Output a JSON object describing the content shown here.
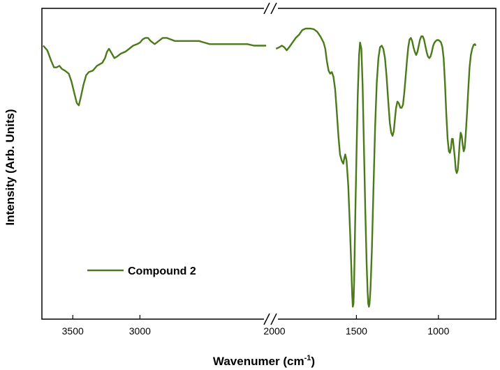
{
  "chart_data": {
    "type": "line",
    "xlabel": "Wavenumer (cm",
    "xlabel_superscript": "-1",
    "xlabel_suffix": ")",
    "ylabel": "Intensity (Arb. Units)",
    "x_axis_reversed": true,
    "x_axis_break": [
      2050,
      2000
    ],
    "segments": [
      {
        "xlim": [
          3730,
          2050
        ],
        "ticks": [
          3500,
          3000
        ]
      },
      {
        "xlim": [
          2000,
          650
        ],
        "ticks": [
          2000,
          1500,
          1000
        ]
      }
    ],
    "tick_labels": [
      "3500",
      "3000",
      "2000",
      "1500",
      "1000"
    ],
    "ylim": [
      0,
      100
    ],
    "grid": false,
    "legend_position": "bottom-left",
    "series": [
      {
        "name": "Compound 2",
        "color": "#4a7a1a",
        "points": [
          [
            3720,
            88
          ],
          [
            3690,
            86.5
          ],
          [
            3660,
            83
          ],
          [
            3640,
            81
          ],
          [
            3620,
            81
          ],
          [
            3600,
            81.5
          ],
          [
            3580,
            80.5
          ],
          [
            3560,
            80
          ],
          [
            3530,
            79
          ],
          [
            3510,
            76.5
          ],
          [
            3490,
            73
          ],
          [
            3470,
            69.5
          ],
          [
            3455,
            68.8
          ],
          [
            3440,
            71.5
          ],
          [
            3420,
            75.5
          ],
          [
            3400,
            78.5
          ],
          [
            3380,
            79.5
          ],
          [
            3350,
            80
          ],
          [
            3320,
            81.5
          ],
          [
            3300,
            82
          ],
          [
            3280,
            82.5
          ],
          [
            3260,
            84
          ],
          [
            3245,
            86
          ],
          [
            3230,
            87
          ],
          [
            3210,
            85.5
          ],
          [
            3190,
            84
          ],
          [
            3170,
            84.5
          ],
          [
            3140,
            85.5
          ],
          [
            3110,
            86
          ],
          [
            3080,
            87
          ],
          [
            3050,
            88
          ],
          [
            3020,
            88.5
          ],
          [
            3000,
            89
          ],
          [
            2980,
            90
          ],
          [
            2960,
            90.5
          ],
          [
            2940,
            90.5
          ],
          [
            2920,
            89.5
          ],
          [
            2890,
            88.5
          ],
          [
            2860,
            89.5
          ],
          [
            2830,
            90.5
          ],
          [
            2800,
            90.5
          ],
          [
            2770,
            90
          ],
          [
            2740,
            89.5
          ],
          [
            2710,
            89.5
          ],
          [
            2680,
            89.5
          ],
          [
            2650,
            89.5
          ],
          [
            2620,
            89.5
          ],
          [
            2590,
            89.5
          ],
          [
            2560,
            89.5
          ],
          [
            2520,
            89
          ],
          [
            2480,
            88.5
          ],
          [
            2440,
            88.5
          ],
          [
            2400,
            88.5
          ],
          [
            2350,
            88.5
          ],
          [
            2300,
            88.5
          ],
          [
            2250,
            88.5
          ],
          [
            2200,
            88.5
          ],
          [
            2150,
            88
          ],
          [
            2100,
            88
          ],
          [
            2060,
            88
          ]
        ],
        "points_after_break": [
          [
            1990,
            87
          ],
          [
            1970,
            87.5
          ],
          [
            1955,
            88
          ],
          [
            1940,
            87.5
          ],
          [
            1925,
            86.5
          ],
          [
            1910,
            87.5
          ],
          [
            1890,
            89
          ],
          [
            1870,
            90.5
          ],
          [
            1850,
            91.5
          ],
          [
            1830,
            93
          ],
          [
            1810,
            93.5
          ],
          [
            1780,
            93.5
          ],
          [
            1760,
            93.3
          ],
          [
            1740,
            92.5
          ],
          [
            1720,
            91
          ],
          [
            1700,
            89
          ],
          [
            1690,
            87
          ],
          [
            1680,
            83
          ],
          [
            1670,
            80
          ],
          [
            1660,
            79
          ],
          [
            1650,
            79.5
          ],
          [
            1640,
            78
          ],
          [
            1630,
            74
          ],
          [
            1620,
            67
          ],
          [
            1610,
            59
          ],
          [
            1600,
            53
          ],
          [
            1590,
            51
          ],
          [
            1580,
            50
          ],
          [
            1575,
            51.5
          ],
          [
            1568,
            53
          ],
          [
            1560,
            51
          ],
          [
            1550,
            43
          ],
          [
            1540,
            30
          ],
          [
            1532,
            18
          ],
          [
            1526,
            8
          ],
          [
            1522,
            4
          ],
          [
            1518,
            5
          ],
          [
            1514,
            12
          ],
          [
            1508,
            30
          ],
          [
            1500,
            52
          ],
          [
            1492,
            72
          ],
          [
            1484,
            85
          ],
          [
            1478,
            89
          ],
          [
            1470,
            87
          ],
          [
            1462,
            75
          ],
          [
            1454,
            55
          ],
          [
            1446,
            35
          ],
          [
            1438,
            18
          ],
          [
            1432,
            9
          ],
          [
            1428,
            5
          ],
          [
            1424,
            4
          ],
          [
            1420,
            5
          ],
          [
            1414,
            10
          ],
          [
            1406,
            22
          ],
          [
            1396,
            42
          ],
          [
            1386,
            62
          ],
          [
            1376,
            76
          ],
          [
            1366,
            84
          ],
          [
            1356,
            87.5
          ],
          [
            1346,
            88
          ],
          [
            1336,
            87
          ],
          [
            1326,
            84
          ],
          [
            1316,
            78
          ],
          [
            1306,
            70
          ],
          [
            1296,
            63
          ],
          [
            1288,
            60
          ],
          [
            1280,
            59
          ],
          [
            1272,
            60.5
          ],
          [
            1264,
            65
          ],
          [
            1258,
            68
          ],
          [
            1250,
            70
          ],
          [
            1242,
            69.5
          ],
          [
            1232,
            68
          ],
          [
            1224,
            68
          ],
          [
            1216,
            69
          ],
          [
            1208,
            73
          ],
          [
            1200,
            78
          ],
          [
            1192,
            83
          ],
          [
            1184,
            87.5
          ],
          [
            1176,
            90
          ],
          [
            1168,
            90.5
          ],
          [
            1160,
            89.5
          ],
          [
            1152,
            87.5
          ],
          [
            1144,
            86
          ],
          [
            1136,
            85
          ],
          [
            1128,
            86
          ],
          [
            1120,
            88
          ],
          [
            1112,
            90
          ],
          [
            1104,
            91
          ],
          [
            1096,
            91
          ],
          [
            1088,
            90
          ],
          [
            1080,
            88
          ],
          [
            1072,
            86
          ],
          [
            1064,
            84.5
          ],
          [
            1056,
            84
          ],
          [
            1048,
            84.5
          ],
          [
            1040,
            86
          ],
          [
            1032,
            88
          ],
          [
            1024,
            89
          ],
          [
            1016,
            89.5
          ],
          [
            1008,
            89.8
          ],
          [
            1000,
            89.8
          ],
          [
            992,
            89.5
          ],
          [
            984,
            89
          ],
          [
            976,
            87.5
          ],
          [
            968,
            84
          ],
          [
            960,
            76
          ],
          [
            952,
            66
          ],
          [
            944,
            58
          ],
          [
            936,
            54
          ],
          [
            930,
            53.5
          ],
          [
            924,
            55
          ],
          [
            918,
            58
          ],
          [
            912,
            58
          ],
          [
            906,
            55
          ],
          [
            900,
            52
          ],
          [
            894,
            48
          ],
          [
            888,
            47
          ],
          [
            882,
            48
          ],
          [
            876,
            52
          ],
          [
            870,
            57
          ],
          [
            864,
            60
          ],
          [
            858,
            59
          ],
          [
            852,
            56
          ],
          [
            846,
            54
          ],
          [
            840,
            55
          ],
          [
            834,
            59
          ],
          [
            826,
            66
          ],
          [
            818,
            74
          ],
          [
            810,
            81
          ],
          [
            802,
            85
          ],
          [
            794,
            87
          ],
          [
            786,
            88.2
          ],
          [
            778,
            88.5
          ],
          [
            772,
            88
          ]
        ]
      }
    ]
  }
}
